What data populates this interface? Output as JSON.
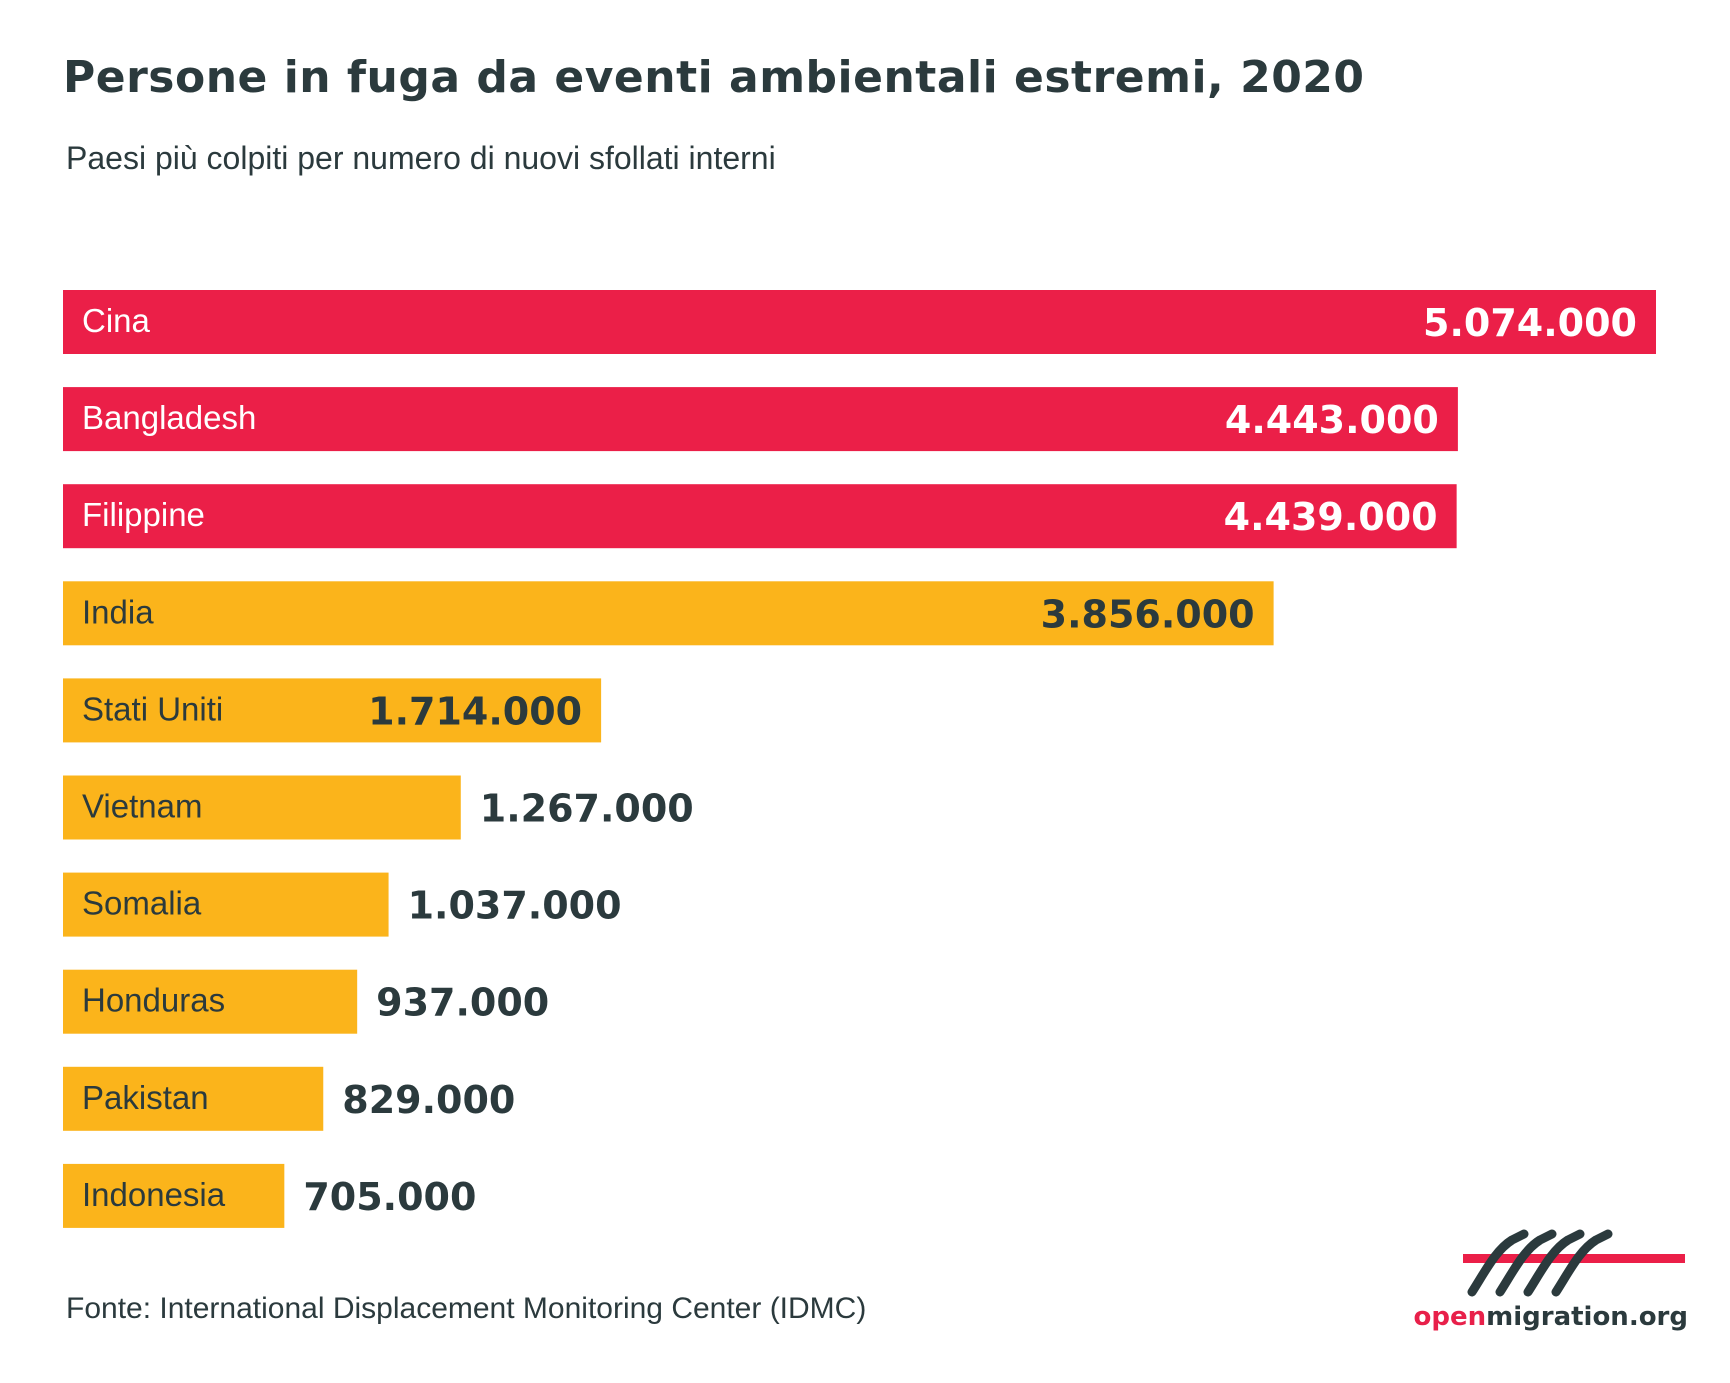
{
  "chart_data": {
    "type": "bar",
    "orientation": "horizontal",
    "title": "Persone in fuga da eventi ambientali estremi, 2020",
    "subtitle": "Paesi più colpiti per numero di nuovi sfollati interni",
    "categories": [
      "Cina",
      "Bangladesh",
      "Filippine",
      "India",
      "Stati Uniti",
      "Vietnam",
      "Somalia",
      "Honduras",
      "Pakistan",
      "Indonesia"
    ],
    "values": [
      5074000,
      4443000,
      4439000,
      3856000,
      1714000,
      1267000,
      1037000,
      937000,
      829000,
      705000
    ],
    "value_labels": [
      "5.074.000",
      "4.443.000",
      "4.439.000",
      "3.856.000",
      "1.714.000",
      "1.267.000",
      "1.037.000",
      "937.000",
      "829.000",
      "705.000"
    ],
    "colors": [
      "#eb1f48",
      "#eb1f48",
      "#eb1f48",
      "#fbb41b",
      "#fbb41b",
      "#fbb41b",
      "#fbb41b",
      "#fbb41b",
      "#fbb41b",
      "#fbb41b"
    ],
    "grid": false,
    "legend": "none"
  },
  "source": "Fonte: International Displacement Monitoring Center (IDMC)",
  "logo": {
    "open": "open",
    "rest": "migration.org"
  }
}
